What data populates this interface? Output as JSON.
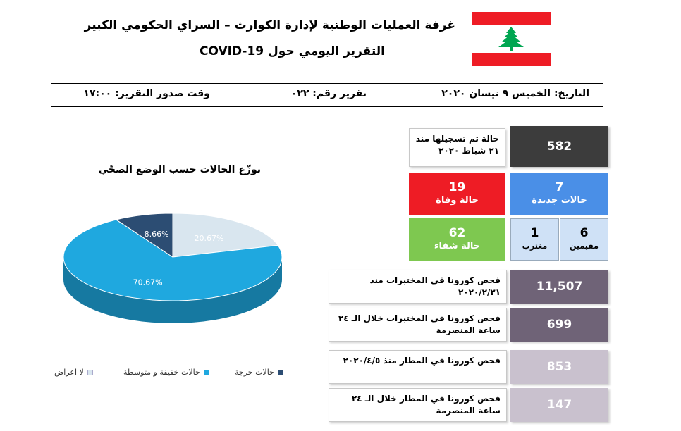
{
  "header": {
    "title_line1": "غرفة العمليات الوطنية لإدارة الكوارث – السراي الحكومي الكبير",
    "title_line2": "التقرير اليومي حول COVID-19"
  },
  "meta": {
    "date": "التاريخ: الخميس ٩ نيسان ٢٠٢٠",
    "report_number": "تقرير رقم: ٠٢٢",
    "report_time": "وقت صدور التقرير: ١٧:٠٠"
  },
  "colors": {
    "flag_red": "#ee1c25",
    "cedar_green": "#00a651",
    "total_box": "#3c3c3c",
    "deaths_box": "#ee1c25",
    "new_cases_box": "#4a8fe7",
    "recovered_box": "#7ec850",
    "split_box": "#cfe1f6",
    "tests_box": "#6f6377",
    "airport_box": "#c9c1ce",
    "pie_no_symptoms": "#d9e6ef",
    "pie_mild": "#1fa8df",
    "pie_critical": "#2c4d73"
  },
  "stats": {
    "total_cases": "582",
    "total_label": "حالة تم تسجيلها منذ ٢١ شباط ٢٠٢٠",
    "deaths": "19",
    "deaths_label": "حالة وفاة",
    "new_cases": "7",
    "new_cases_label": "حالات جديدة",
    "recovered": "62",
    "recovered_label": "حالة شفاء",
    "residents": "6",
    "residents_label": "مقيمين",
    "expats": "1",
    "expats_label": "مغترب"
  },
  "tests": [
    {
      "label": "فحص كورونا في المختبرات منذ ٢٠٢٠/٢/٢١",
      "value": "11,507"
    },
    {
      "label": "فحص كورونا في المختبرات خلال الـ ٢٤ ساعة المنصرمة",
      "value": "699"
    },
    {
      "label": "فحص كورونا في المطار منذ ٢٠٢٠/٤/٥",
      "value": "853"
    },
    {
      "label": "فحص كورونا في المطار خلال الـ ٢٤ ساعة المنصرمة",
      "value": "147"
    }
  ],
  "chart_data": {
    "type": "pie",
    "title": "توزّع الحالات حسب الوضع الصحّي",
    "slices": [
      {
        "name": "لا اعراض",
        "value": 20.67,
        "label": "20.67%",
        "color": "#d9e6ef"
      },
      {
        "name": "حالات خفيفة و متوسطة",
        "value": 70.67,
        "label": "70.67%",
        "color": "#1fa8df"
      },
      {
        "name": "حالات حرجة",
        "value": 8.66,
        "label": "8.66%",
        "color": "#2c4d73"
      }
    ],
    "legend_position": "bottom"
  }
}
